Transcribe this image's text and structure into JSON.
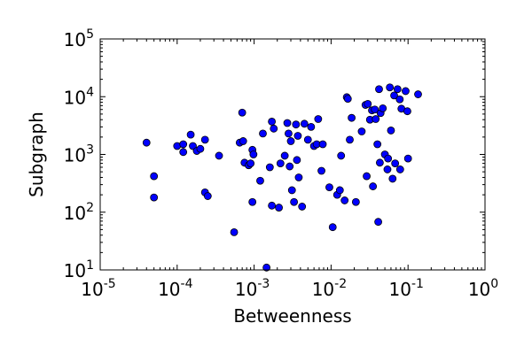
{
  "chart_data": {
    "type": "scatter",
    "title": "",
    "xlabel": "Betweenness",
    "ylabel": "Subgraph",
    "xscale": "log",
    "yscale": "log",
    "xlim": [
      1e-05,
      1
    ],
    "ylim": [
      10,
      100000
    ],
    "xticks": [
      {
        "base": "10",
        "exp": "-5"
      },
      {
        "base": "10",
        "exp": "-4"
      },
      {
        "base": "10",
        "exp": "-3"
      },
      {
        "base": "10",
        "exp": "-2"
      },
      {
        "base": "10",
        "exp": "-1"
      },
      {
        "base": "10",
        "exp": "0"
      }
    ],
    "yticks": [
      {
        "base": "10",
        "exp": "1"
      },
      {
        "base": "10",
        "exp": "2"
      },
      {
        "base": "10",
        "exp": "3"
      },
      {
        "base": "10",
        "exp": "4"
      },
      {
        "base": "10",
        "exp": "5"
      }
    ],
    "grid": false,
    "marker_color": "#0000ff",
    "marker_edge_color": "#000000",
    "series": [
      {
        "points": [
          [
            4e-05,
            1600
          ],
          [
            5e-05,
            420
          ],
          [
            5e-05,
            180
          ],
          [
            0.0001,
            1400
          ],
          [
            0.00012,
            1500
          ],
          [
            0.00012,
            1100
          ],
          [
            0.00015,
            2200
          ],
          [
            0.00016,
            1400
          ],
          [
            0.00018,
            1150
          ],
          [
            0.0002,
            1250
          ],
          [
            0.00023,
            1800
          ],
          [
            0.00023,
            220
          ],
          [
            0.00025,
            190
          ],
          [
            0.00035,
            950
          ],
          [
            0.00055,
            45
          ],
          [
            0.00065,
            1600
          ],
          [
            0.0007,
            5300
          ],
          [
            0.00072,
            1700
          ],
          [
            0.00075,
            720
          ],
          [
            0.00085,
            650
          ],
          [
            0.0009,
            700
          ],
          [
            0.00095,
            1200
          ],
          [
            0.00098,
            1000
          ],
          [
            0.00095,
            150
          ],
          [
            0.0012,
            350
          ],
          [
            0.0013,
            2300
          ],
          [
            0.00145,
            11
          ],
          [
            0.0016,
            600
          ],
          [
            0.0017,
            3700
          ],
          [
            0.0018,
            2800
          ],
          [
            0.0017,
            130
          ],
          [
            0.0021,
            120
          ],
          [
            0.0022,
            700
          ],
          [
            0.0025,
            950
          ],
          [
            0.0027,
            3500
          ],
          [
            0.0028,
            2300
          ],
          [
            0.0029,
            620
          ],
          [
            0.003,
            1700
          ],
          [
            0.0031,
            240
          ],
          [
            0.0033,
            150
          ],
          [
            0.0035,
            3300
          ],
          [
            0.0036,
            800
          ],
          [
            0.0037,
            2100
          ],
          [
            0.0038,
            400
          ],
          [
            0.0042,
            125
          ],
          [
            0.0045,
            3400
          ],
          [
            0.005,
            1800
          ],
          [
            0.0055,
            3000
          ],
          [
            0.006,
            1400
          ],
          [
            0.0065,
            1500
          ],
          [
            0.0068,
            4100
          ],
          [
            0.0075,
            520
          ],
          [
            0.0078,
            1500
          ],
          [
            0.0095,
            270
          ],
          [
            0.0105,
            55
          ],
          [
            0.012,
            200
          ],
          [
            0.013,
            240
          ],
          [
            0.0135,
            950
          ],
          [
            0.015,
            160
          ],
          [
            0.016,
            9800
          ],
          [
            0.0165,
            9200
          ],
          [
            0.0175,
            1800
          ],
          [
            0.0185,
            4300
          ],
          [
            0.021,
            150
          ],
          [
            0.025,
            2500
          ],
          [
            0.028,
            7200
          ],
          [
            0.029,
            420
          ],
          [
            0.03,
            7500
          ],
          [
            0.032,
            4000
          ],
          [
            0.034,
            5800
          ],
          [
            0.035,
            280
          ],
          [
            0.037,
            6000
          ],
          [
            0.038,
            4100
          ],
          [
            0.04,
            1500
          ],
          [
            0.041,
            68
          ],
          [
            0.042,
            13500
          ],
          [
            0.043,
            720
          ],
          [
            0.044,
            5200
          ],
          [
            0.047,
            6300
          ],
          [
            0.05,
            1000
          ],
          [
            0.054,
            550
          ],
          [
            0.055,
            850
          ],
          [
            0.058,
            14500
          ],
          [
            0.06,
            2600
          ],
          [
            0.063,
            380
          ],
          [
            0.066,
            10500
          ],
          [
            0.068,
            700
          ],
          [
            0.073,
            13500
          ],
          [
            0.078,
            9000
          ],
          [
            0.079,
            550
          ],
          [
            0.082,
            6200
          ],
          [
            0.093,
            12500
          ],
          [
            0.098,
            5600
          ],
          [
            0.1,
            850
          ],
          [
            0.135,
            11000
          ]
        ]
      }
    ]
  }
}
